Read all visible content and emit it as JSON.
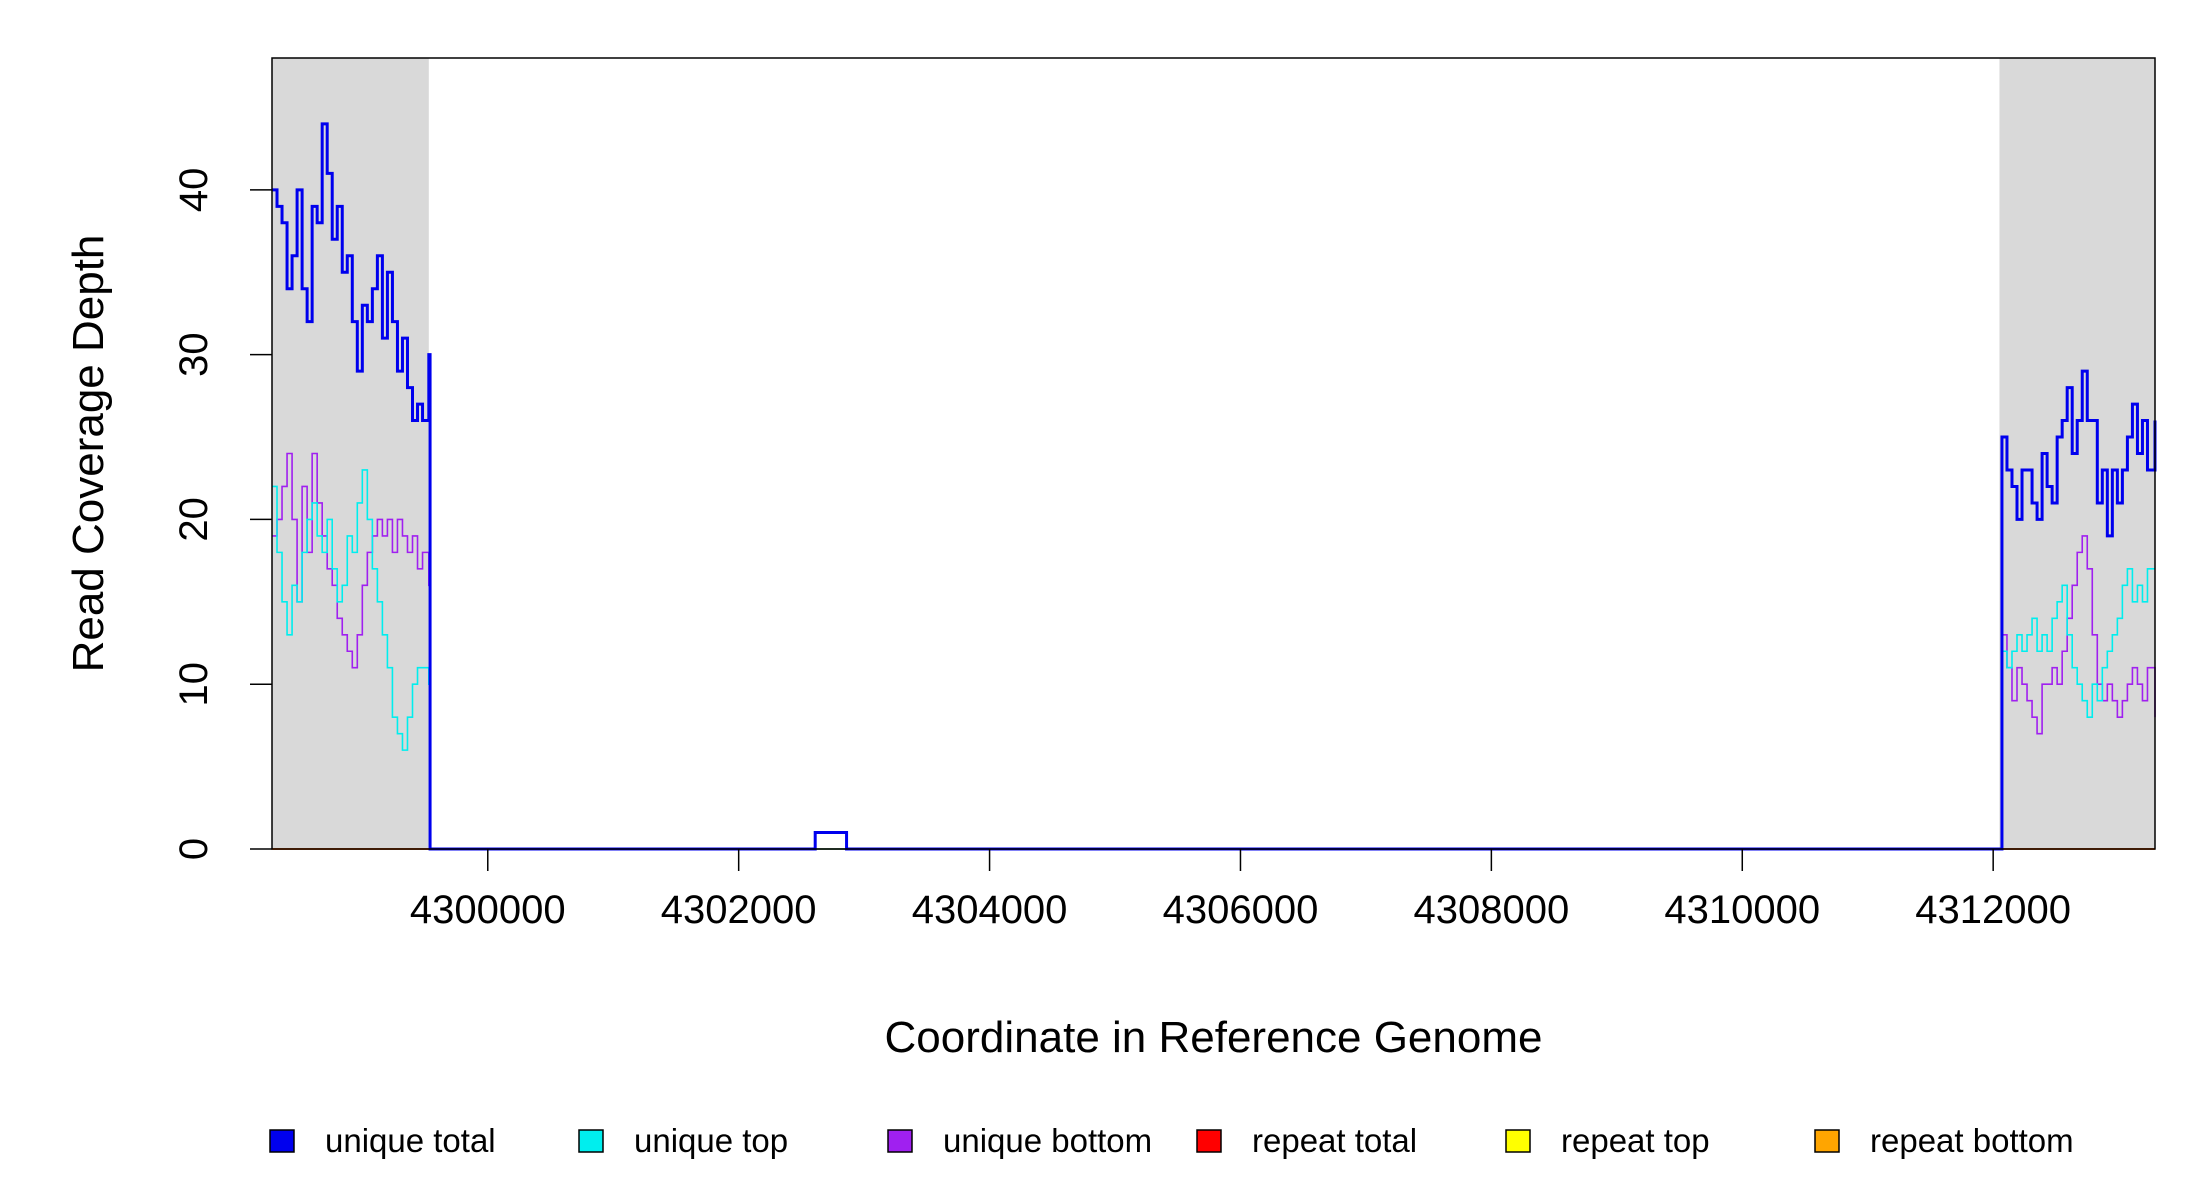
{
  "chart_data": {
    "type": "line",
    "title": "",
    "xlabel": "Coordinate in Reference Genome",
    "ylabel": "Read Coverage Depth",
    "xlim": [
      4298280,
      4313290
    ],
    "ylim": [
      0,
      48
    ],
    "x_ticks": [
      4300000,
      4302000,
      4304000,
      4306000,
      4308000,
      4310000,
      4312000
    ],
    "x_tick_labels": [
      "4300000",
      "4302000",
      "4304000",
      "4306000",
      "4308000",
      "4310000",
      "4312000"
    ],
    "y_ticks": [
      0,
      10,
      20,
      30,
      40
    ],
    "y_tick_labels": [
      "0",
      "10",
      "20",
      "30",
      "40"
    ],
    "grid": false,
    "legend_position": "bottom",
    "shaded_regions": [
      {
        "x_start": 4298280,
        "x_end": 4299530,
        "color": "#d9d9d9"
      },
      {
        "x_start": 4312050,
        "x_end": 4313290,
        "color": "#d9d9d9"
      }
    ],
    "series": [
      {
        "name": "unique total",
        "color": "#0000ee",
        "x": [
          4298280,
          4298320,
          4298360,
          4298400,
          4298440,
          4298480,
          4298520,
          4298560,
          4298600,
          4298640,
          4298680,
          4298720,
          4298760,
          4298800,
          4298840,
          4298880,
          4298920,
          4298960,
          4299000,
          4299040,
          4299080,
          4299120,
          4299160,
          4299200,
          4299240,
          4299280,
          4299320,
          4299360,
          4299400,
          4299440,
          4299480,
          4299530,
          4299540,
          4302600,
          4302610,
          4302850,
          4302860,
          4312050,
          4312070,
          4312110,
          4312150,
          4312190,
          4312230,
          4312270,
          4312310,
          4312350,
          4312390,
          4312430,
          4312470,
          4312510,
          4312550,
          4312590,
          4312630,
          4312670,
          4312710,
          4312750,
          4312790,
          4312830,
          4312870,
          4312910,
          4312950,
          4312990,
          4313030,
          4313070,
          4313110,
          4313150,
          4313190,
          4313230,
          4313290
        ],
        "y": [
          40,
          39,
          38,
          34,
          36,
          40,
          34,
          32,
          39,
          38,
          44,
          41,
          37,
          39,
          35,
          36,
          32,
          29,
          33,
          32,
          34,
          36,
          31,
          35,
          32,
          29,
          31,
          28,
          26,
          27,
          26,
          30,
          0,
          0,
          1,
          1,
          0,
          0,
          25,
          23,
          22,
          20,
          23,
          23,
          21,
          20,
          24,
          22,
          21,
          25,
          26,
          28,
          24,
          26,
          29,
          26,
          26,
          21,
          23,
          19,
          23,
          21,
          23,
          25,
          27,
          24,
          26,
          23,
          26
        ]
      },
      {
        "name": "unique top",
        "color": "#00eeee",
        "x": [
          4298280,
          4298320,
          4298360,
          4298400,
          4298440,
          4298480,
          4298520,
          4298560,
          4298600,
          4298640,
          4298680,
          4298720,
          4298760,
          4298800,
          4298840,
          4298880,
          4298920,
          4298960,
          4299000,
          4299040,
          4299080,
          4299120,
          4299160,
          4299200,
          4299240,
          4299280,
          4299320,
          4299360,
          4299400,
          4299440,
          4299480,
          4299530,
          4299540,
          4312050,
          4312070,
          4312110,
          4312150,
          4312190,
          4312230,
          4312270,
          4312310,
          4312350,
          4312390,
          4312430,
          4312470,
          4312510,
          4312550,
          4312590,
          4312630,
          4312670,
          4312710,
          4312750,
          4312790,
          4312830,
          4312870,
          4312910,
          4312950,
          4312990,
          4313030,
          4313070,
          4313110,
          4313150,
          4313190,
          4313230,
          4313290
        ],
        "y": [
          22,
          18,
          15,
          13,
          16,
          15,
          18,
          20,
          21,
          19,
          18,
          20,
          17,
          15,
          16,
          19,
          18,
          21,
          23,
          20,
          17,
          15,
          13,
          11,
          8,
          7,
          6,
          8,
          10,
          11,
          11,
          10,
          0,
          0,
          12,
          11,
          12,
          13,
          12,
          13,
          14,
          12,
          13,
          12,
          14,
          15,
          16,
          13,
          11,
          10,
          9,
          8,
          10,
          9,
          11,
          12,
          13,
          14,
          16,
          17,
          15,
          16,
          15,
          17,
          17
        ]
      },
      {
        "name": "unique bottom",
        "color": "#a020f0",
        "x": [
          4298280,
          4298320,
          4298360,
          4298400,
          4298440,
          4298480,
          4298520,
          4298560,
          4298600,
          4298640,
          4298680,
          4298720,
          4298760,
          4298800,
          4298840,
          4298880,
          4298920,
          4298960,
          4299000,
          4299040,
          4299080,
          4299120,
          4299160,
          4299200,
          4299240,
          4299280,
          4299320,
          4299360,
          4299400,
          4299440,
          4299480,
          4299530,
          4299540,
          4302600,
          4302610,
          4302850,
          4302860,
          4312050,
          4312070,
          4312110,
          4312150,
          4312190,
          4312230,
          4312270,
          4312310,
          4312350,
          4312390,
          4312430,
          4312470,
          4312510,
          4312550,
          4312590,
          4312630,
          4312670,
          4312710,
          4312750,
          4312790,
          4312830,
          4312870,
          4312910,
          4312950,
          4312990,
          4313030,
          4313070,
          4313110,
          4313150,
          4313190,
          4313230,
          4313290
        ],
        "y": [
          19,
          20,
          22,
          24,
          20,
          15,
          22,
          18,
          24,
          21,
          19,
          17,
          16,
          14,
          13,
          12,
          11,
          13,
          16,
          18,
          19,
          20,
          19,
          20,
          18,
          20,
          19,
          18,
          19,
          17,
          18,
          16,
          0,
          0,
          1,
          1,
          0,
          0,
          13,
          11,
          9,
          11,
          10,
          9,
          8,
          7,
          10,
          10,
          11,
          10,
          12,
          14,
          16,
          18,
          19,
          17,
          13,
          10,
          9,
          10,
          9,
          8,
          9,
          10,
          11,
          10,
          9,
          11,
          8
        ]
      },
      {
        "name": "repeat total",
        "color": "#ff0000",
        "x": [
          4298280,
          4313290
        ],
        "y": [
          0,
          0
        ]
      },
      {
        "name": "repeat top",
        "color": "#ffff00",
        "x": [
          4298280,
          4313290
        ],
        "y": [
          0,
          0
        ]
      },
      {
        "name": "repeat bottom",
        "color": "#ffa500",
        "x": [
          4298280,
          4313290
        ],
        "y": [
          0,
          0
        ]
      }
    ]
  }
}
